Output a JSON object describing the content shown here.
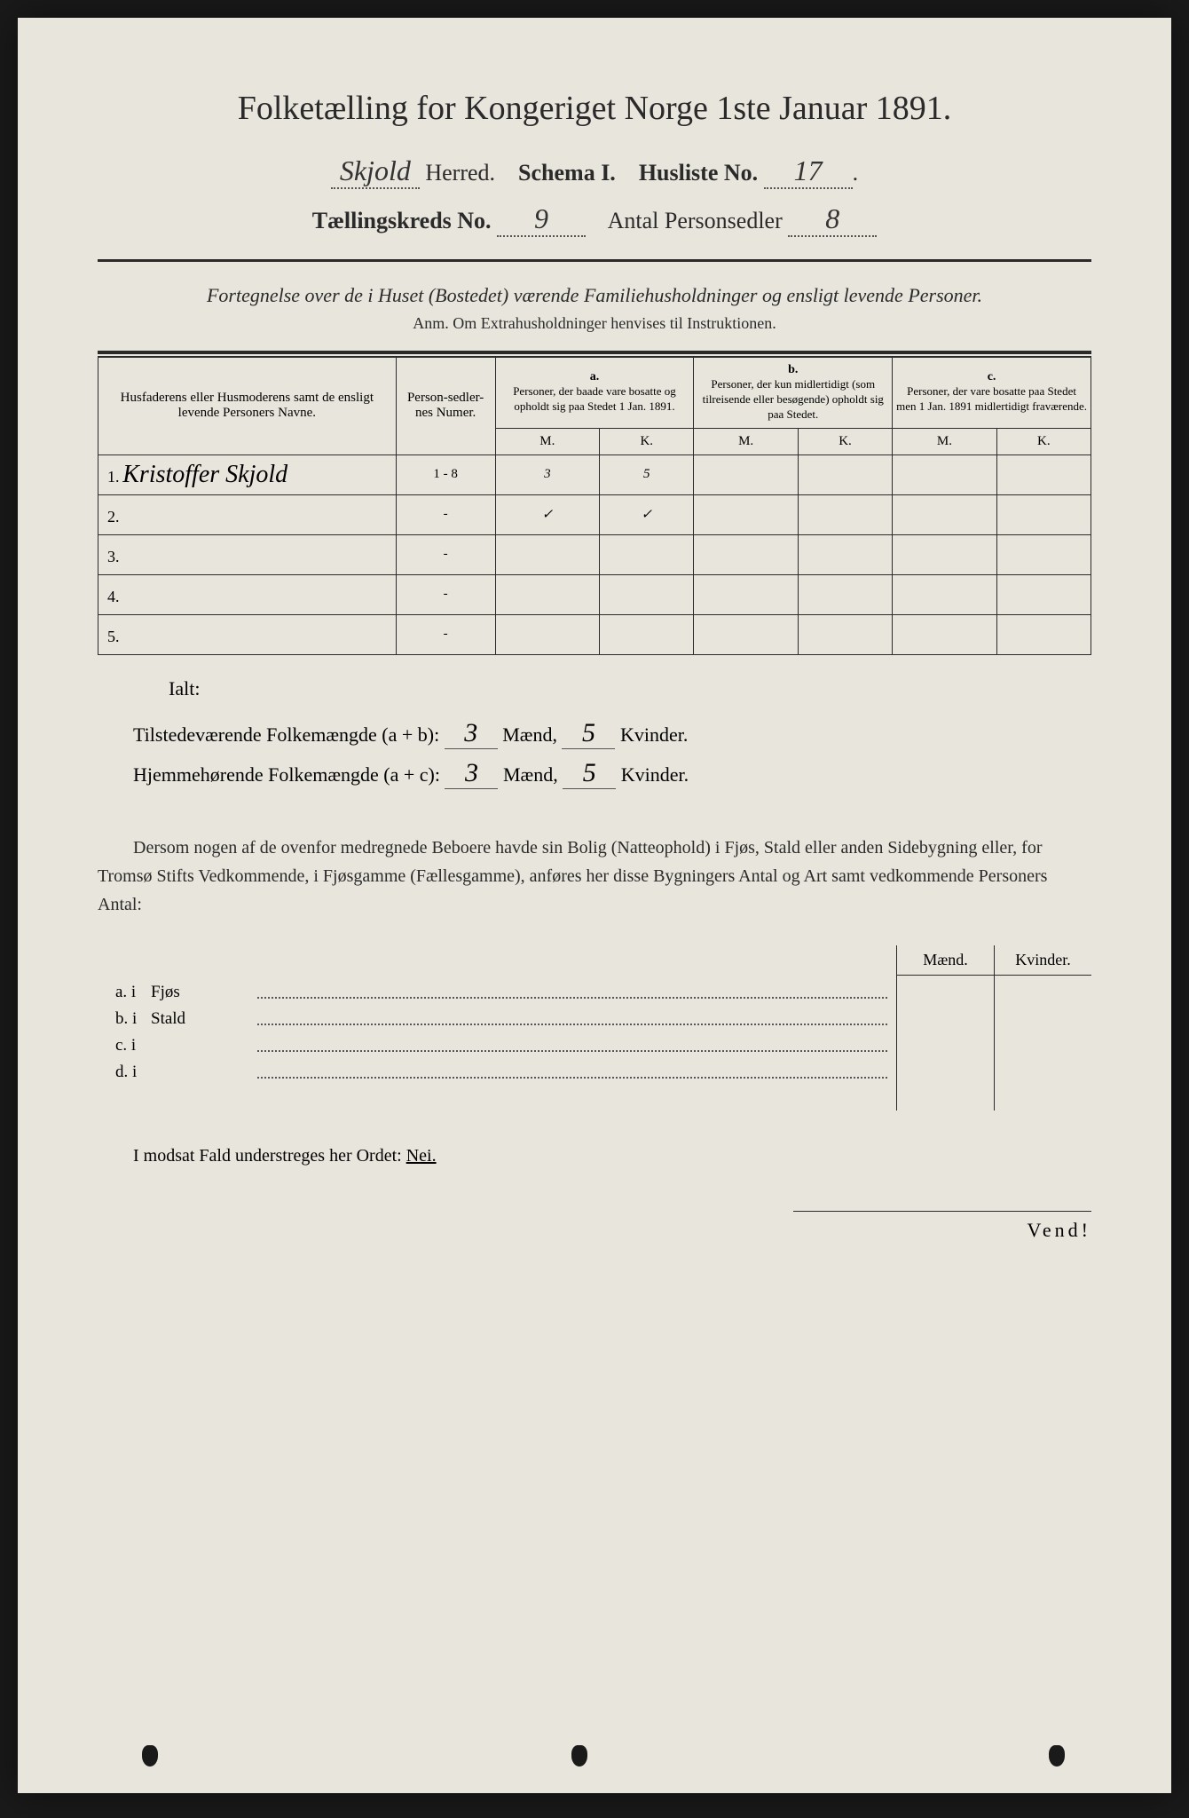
{
  "title": "Folketælling for Kongeriget Norge 1ste Januar 1891.",
  "line1": {
    "herred_value": "Skjold",
    "herred_label": "Herred.",
    "schema_label": "Schema I.",
    "husliste_label": "Husliste No.",
    "husliste_value": "17"
  },
  "line2": {
    "kreds_label": "Tællingskreds No.",
    "kreds_value": "9",
    "antal_label": "Antal Personsedler",
    "antal_value": "8"
  },
  "subtitle": "Fortegnelse over de i Huset (Bostedet) værende Familiehusholdninger og ensligt levende Personer.",
  "note": "Anm. Om Extrahusholdninger henvises til Instruktionen.",
  "table": {
    "col_name": "Husfaderens eller Husmoderens samt de ensligt levende Personers Navne.",
    "col_num": "Person-sedler-nes Numer.",
    "col_a_letter": "a.",
    "col_a_text": "Personer, der baade vare bosatte og opholdt sig paa Stedet 1 Jan. 1891.",
    "col_b_letter": "b.",
    "col_b_text": "Personer, der kun midlertidigt (som tilreisende eller besøgende) opholdt sig paa Stedet.",
    "col_c_letter": "c.",
    "col_c_text": "Personer, der vare bosatte paa Stedet men 1 Jan. 1891 midlertidigt fraværende.",
    "m": "M.",
    "k": "K.",
    "rows": [
      {
        "n": "1.",
        "name": "Kristoffer Skjold",
        "num": "1 - 8",
        "am": "3",
        "ak": "5",
        "bm": "",
        "bk": "",
        "cm": "",
        "ck": ""
      },
      {
        "n": "2.",
        "name": "",
        "num": "-",
        "am": "✓",
        "ak": "✓",
        "bm": "",
        "bk": "",
        "cm": "",
        "ck": ""
      },
      {
        "n": "3.",
        "name": "",
        "num": "-",
        "am": "",
        "ak": "",
        "bm": "",
        "bk": "",
        "cm": "",
        "ck": ""
      },
      {
        "n": "4.",
        "name": "",
        "num": "-",
        "am": "",
        "ak": "",
        "bm": "",
        "bk": "",
        "cm": "",
        "ck": ""
      },
      {
        "n": "5.",
        "name": "",
        "num": "-",
        "am": "",
        "ak": "",
        "bm": "",
        "bk": "",
        "cm": "",
        "ck": ""
      }
    ]
  },
  "ialt": "Ialt:",
  "total1": {
    "label": "Tilstedeværende Folkemængde (a + b):",
    "maend_val": "3",
    "maend_lbl": "Mænd,",
    "kv_val": "5",
    "kv_lbl": "Kvinder."
  },
  "total2": {
    "label": "Hjemmehørende Folkemængde (a + c):",
    "maend_val": "3",
    "maend_lbl": "Mænd,",
    "kv_val": "5",
    "kv_lbl": "Kvinder."
  },
  "para": "Dersom nogen af de ovenfor medregnede Beboere havde sin Bolig (Natteophold) i Fjøs, Stald eller anden Sidebygning eller, for Tromsø Stifts Vedkommende, i Fjøsgamme (Fællesgamme), anføres her disse Bygningers Antal og Art samt vedkommende Personers Antal:",
  "buildings": {
    "header_m": "Mænd.",
    "header_k": "Kvinder.",
    "rows": [
      {
        "label": "a.  i",
        "name": "Fjøs"
      },
      {
        "label": "b.  i",
        "name": "Stald"
      },
      {
        "label": "c.  i",
        "name": ""
      },
      {
        "label": "d.  i",
        "name": ""
      }
    ]
  },
  "nei_line": "I modsat Fald understreges her Ordet:",
  "nei": "Nei.",
  "vend": "Vend!"
}
